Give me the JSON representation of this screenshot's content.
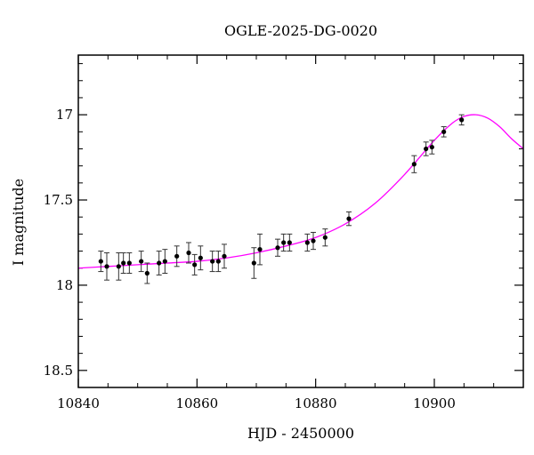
{
  "chart_data": {
    "type": "scatter",
    "title": "OGLE-2025-DG-0020",
    "xlabel": "HJD - 2450000",
    "ylabel": "I magnitude",
    "xlim": [
      10840,
      10915
    ],
    "ylim": [
      18.6,
      16.65
    ],
    "y_inverted": true,
    "grid": false,
    "x_ticks": [
      10840,
      10860,
      10880,
      10900
    ],
    "y_ticks": [
      17,
      17.5,
      18,
      18.5
    ],
    "x_tick_labels": [
      "10840",
      "10860",
      "10880",
      "10900"
    ],
    "y_tick_labels": [
      "17",
      "17.5",
      "18",
      "18.5"
    ],
    "x_minor_step": 5,
    "y_minor_step": 0.1,
    "marker_color": "#000000",
    "model_color": "#ff00ff",
    "points": [
      {
        "x": 10843.8,
        "y": 17.86,
        "err": 0.06
      },
      {
        "x": 10844.8,
        "y": 17.89,
        "err": 0.08
      },
      {
        "x": 10846.8,
        "y": 17.89,
        "err": 0.08
      },
      {
        "x": 10847.6,
        "y": 17.87,
        "err": 0.06
      },
      {
        "x": 10848.6,
        "y": 17.87,
        "err": 0.06
      },
      {
        "x": 10850.6,
        "y": 17.86,
        "err": 0.06
      },
      {
        "x": 10851.6,
        "y": 17.93,
        "err": 0.06
      },
      {
        "x": 10853.6,
        "y": 17.87,
        "err": 0.07
      },
      {
        "x": 10854.6,
        "y": 17.86,
        "err": 0.07
      },
      {
        "x": 10856.6,
        "y": 17.83,
        "err": 0.06
      },
      {
        "x": 10858.6,
        "y": 17.81,
        "err": 0.06
      },
      {
        "x": 10859.6,
        "y": 17.88,
        "err": 0.06
      },
      {
        "x": 10860.6,
        "y": 17.84,
        "err": 0.07
      },
      {
        "x": 10862.6,
        "y": 17.86,
        "err": 0.06
      },
      {
        "x": 10863.6,
        "y": 17.86,
        "err": 0.06
      },
      {
        "x": 10864.6,
        "y": 17.83,
        "err": 0.07
      },
      {
        "x": 10869.6,
        "y": 17.87,
        "err": 0.09
      },
      {
        "x": 10870.6,
        "y": 17.79,
        "err": 0.09
      },
      {
        "x": 10873.6,
        "y": 17.78,
        "err": 0.05
      },
      {
        "x": 10874.6,
        "y": 17.75,
        "err": 0.05
      },
      {
        "x": 10875.6,
        "y": 17.75,
        "err": 0.05
      },
      {
        "x": 10878.6,
        "y": 17.75,
        "err": 0.05
      },
      {
        "x": 10879.6,
        "y": 17.74,
        "err": 0.05
      },
      {
        "x": 10881.6,
        "y": 17.72,
        "err": 0.05
      },
      {
        "x": 10885.6,
        "y": 17.61,
        "err": 0.04
      },
      {
        "x": 10896.6,
        "y": 17.29,
        "err": 0.05
      },
      {
        "x": 10898.6,
        "y": 17.2,
        "err": 0.04
      },
      {
        "x": 10899.6,
        "y": 17.19,
        "err": 0.04
      },
      {
        "x": 10901.6,
        "y": 17.1,
        "err": 0.03
      },
      {
        "x": 10904.6,
        "y": 17.03,
        "err": 0.03
      }
    ],
    "model": {
      "x": [
        10840,
        10845,
        10850,
        10855,
        10860,
        10865,
        10870,
        10875,
        10880,
        10885,
        10890,
        10895,
        10900,
        10903,
        10905,
        10907,
        10909,
        10911,
        10913,
        10915
      ],
      "y": [
        17.9,
        17.89,
        17.88,
        17.87,
        17.86,
        17.84,
        17.81,
        17.77,
        17.72,
        17.64,
        17.52,
        17.35,
        17.15,
        17.05,
        17.01,
        17.0,
        17.02,
        17.07,
        17.14,
        17.2
      ]
    }
  }
}
